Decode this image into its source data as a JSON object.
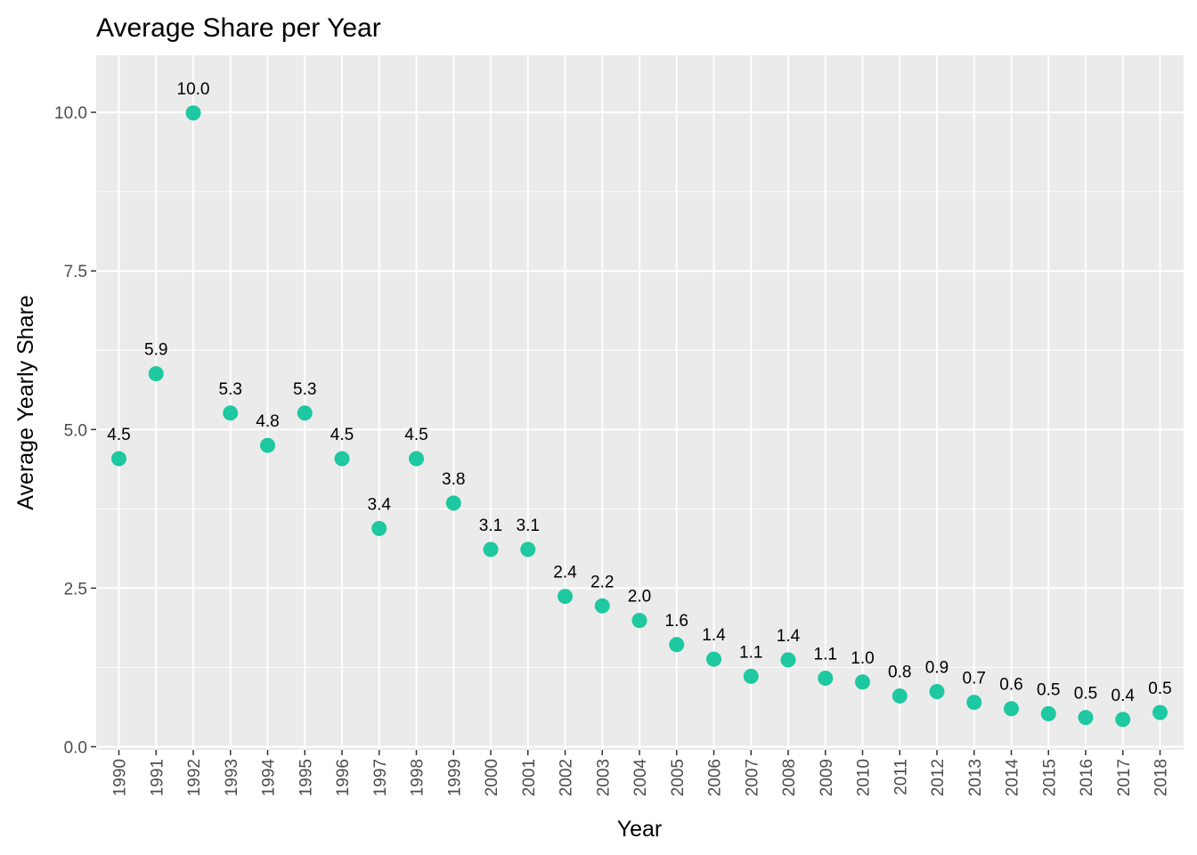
{
  "chart_data": {
    "type": "scatter",
    "title": "Average Share per Year",
    "xlabel": "Year",
    "ylabel": "Average Yearly Share",
    "categories": [
      "1990",
      "1991",
      "1992",
      "1993",
      "1994",
      "1995",
      "1996",
      "1997",
      "1998",
      "1999",
      "2000",
      "2001",
      "2002",
      "2003",
      "2004",
      "2005",
      "2006",
      "2007",
      "2008",
      "2009",
      "2010",
      "2011",
      "2012",
      "2013",
      "2014",
      "2015",
      "2016",
      "2017",
      "2018"
    ],
    "values": [
      4.54,
      5.88,
      9.99,
      5.26,
      4.75,
      5.26,
      4.54,
      3.44,
      4.54,
      3.84,
      3.11,
      3.11,
      2.37,
      2.22,
      1.99,
      1.61,
      1.38,
      1.11,
      1.37,
      1.08,
      1.02,
      0.8,
      0.87,
      0.7,
      0.6,
      0.52,
      0.46,
      0.43,
      0.54
    ],
    "value_labels": [
      "4.5",
      "5.9",
      "10.0",
      "5.3",
      "4.8",
      "5.3",
      "4.5",
      "3.4",
      "4.5",
      "3.8",
      "3.1",
      "3.1",
      "2.4",
      "2.2",
      "2.0",
      "1.6",
      "1.4",
      "1.1",
      "1.4",
      "1.1",
      "1.0",
      "0.8",
      "0.9",
      "0.7",
      "0.6",
      "0.5",
      "0.5",
      "0.4",
      "0.5"
    ],
    "y_ticks": [
      0,
      2.5,
      5,
      7.5,
      10
    ],
    "y_tick_labels": [
      "0.0",
      "2.5",
      "5.0",
      "7.5",
      "10.0"
    ],
    "ylim": [
      -0.05,
      10.9
    ],
    "grid": true,
    "legend": "none",
    "colors": {
      "point": "#1ec8a0",
      "panel": "#ebebeb",
      "grid": "#ffffff",
      "tick": "#333333"
    }
  }
}
